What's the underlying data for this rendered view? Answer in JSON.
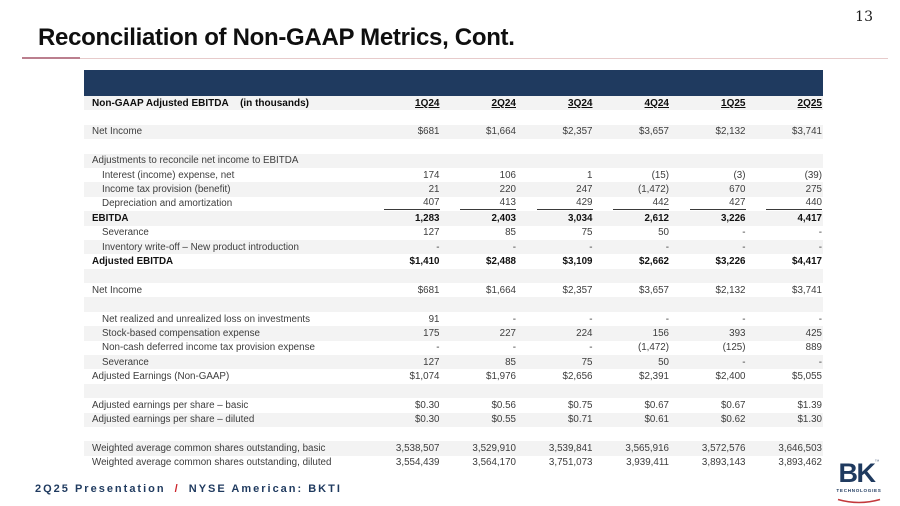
{
  "page": {
    "number": "13",
    "title": "Reconciliation of Non-GAAP Metrics, Cont."
  },
  "colors": {
    "navy": "#1f3a5f",
    "red": "#cc2229",
    "stripe": "#f3f3f3",
    "pink": "#e7cbcb",
    "rose": "#bb7f8e"
  },
  "table": {
    "header_label": "Non-GAAP Adjusted EBITDA",
    "header_units": "(in thousands)",
    "columns": [
      "1Q24",
      "2Q24",
      "3Q24",
      "4Q24",
      "1Q25",
      "2Q25"
    ],
    "rows": [
      {
        "label": "",
        "values": [
          "",
          "",
          "",
          "",
          "",
          ""
        ]
      },
      {
        "label": "Net Income",
        "values": [
          "$681",
          "$1,664",
          "$2,357",
          "$3,657",
          "$2,132",
          "$3,741"
        ]
      },
      {
        "label": "",
        "values": [
          "",
          "",
          "",
          "",
          "",
          ""
        ]
      },
      {
        "label": "Adjustments to reconcile net income to EBITDA",
        "values": [
          "",
          "",
          "",
          "",
          "",
          ""
        ]
      },
      {
        "label": "Interest (income) expense, net",
        "indent": true,
        "values": [
          "174",
          "106",
          "1",
          "(15)",
          "(3)",
          "(39)"
        ]
      },
      {
        "label": "Income tax provision (benefit)",
        "indent": true,
        "values": [
          "21",
          "220",
          "247",
          "(1,472)",
          "670",
          "275"
        ]
      },
      {
        "label": "Depreciation and amortization",
        "indent": true,
        "underline": true,
        "values": [
          "407",
          "413",
          "429",
          "442",
          "427",
          "440"
        ]
      },
      {
        "label": "EBITDA",
        "bold": true,
        "values": [
          "1,283",
          "2,403",
          "3,034",
          "2,612",
          "3,226",
          "4,417"
        ]
      },
      {
        "label": "Severance",
        "indent": true,
        "values": [
          "127",
          "85",
          "75",
          "50",
          "-",
          "-"
        ]
      },
      {
        "label": "Inventory write-off – New product introduction",
        "indent": true,
        "values": [
          "-",
          "-",
          "-",
          "-",
          "-",
          "-"
        ]
      },
      {
        "label": "Adjusted EBITDA",
        "bold": true,
        "values": [
          "$1,410",
          "$2,488",
          "$3,109",
          "$2,662",
          "$3,226",
          "$4,417"
        ]
      },
      {
        "label": "",
        "values": [
          "",
          "",
          "",
          "",
          "",
          ""
        ]
      },
      {
        "label": "Net Income",
        "values": [
          "$681",
          "$1,664",
          "$2,357",
          "$3,657",
          "$2,132",
          "$3,741"
        ]
      },
      {
        "label": "",
        "values": [
          "",
          "",
          "",
          "",
          "",
          ""
        ]
      },
      {
        "label": "Net realized and unrealized  loss on investments",
        "indent": true,
        "values": [
          "91",
          "-",
          "-",
          "-",
          "-",
          "-"
        ]
      },
      {
        "label": "Stock-based compensation expense",
        "indent": true,
        "values": [
          "175",
          "227",
          "224",
          "156",
          "393",
          "425"
        ]
      },
      {
        "label": "Non-cash deferred income tax provision expense",
        "indent": true,
        "values": [
          "-",
          "-",
          "-",
          "(1,472)",
          "(125)",
          "889"
        ]
      },
      {
        "label": "Severance",
        "indent": true,
        "values": [
          "127",
          "85",
          "75",
          "50",
          "-",
          "-"
        ]
      },
      {
        "label": "Adjusted Earnings (Non-GAAP)",
        "values": [
          "$1,074",
          "$1,976",
          "$2,656",
          "$2,391",
          "$2,400",
          "$5,055"
        ]
      },
      {
        "label": "",
        "values": [
          "",
          "",
          "",
          "",
          "",
          ""
        ]
      },
      {
        "label": "Adjusted earnings per share – basic",
        "values": [
          "$0.30",
          "$0.56",
          "$0.75",
          "$0.67",
          "$0.67",
          "$1.39"
        ]
      },
      {
        "label": "Adjusted earnings per share – diluted",
        "values": [
          "$0.30",
          "$0.55",
          "$0.71",
          "$0.61",
          "$0.62",
          "$1.30"
        ]
      },
      {
        "label": "",
        "values": [
          "",
          "",
          "",
          "",
          "",
          ""
        ]
      },
      {
        "label": "Weighted average common shares outstanding, basic",
        "values": [
          "3,538,507",
          "3,529,910",
          "3,539,841",
          "3,565,916",
          "3,572,576",
          "3,646,503"
        ]
      },
      {
        "label": "Weighted average common shares outstanding, diluted",
        "values": [
          "3,554,439",
          "3,564,170",
          "3,751,073",
          "3,939,411",
          "3,893,143",
          "3,893,462"
        ]
      }
    ]
  },
  "footer": {
    "left_text": "2Q25 Presentation",
    "separator": "/",
    "right_text": "NYSE American: BKTI"
  },
  "logo": {
    "text": "BK",
    "tm": "™",
    "subtext": "TECHNOLOGIES"
  }
}
